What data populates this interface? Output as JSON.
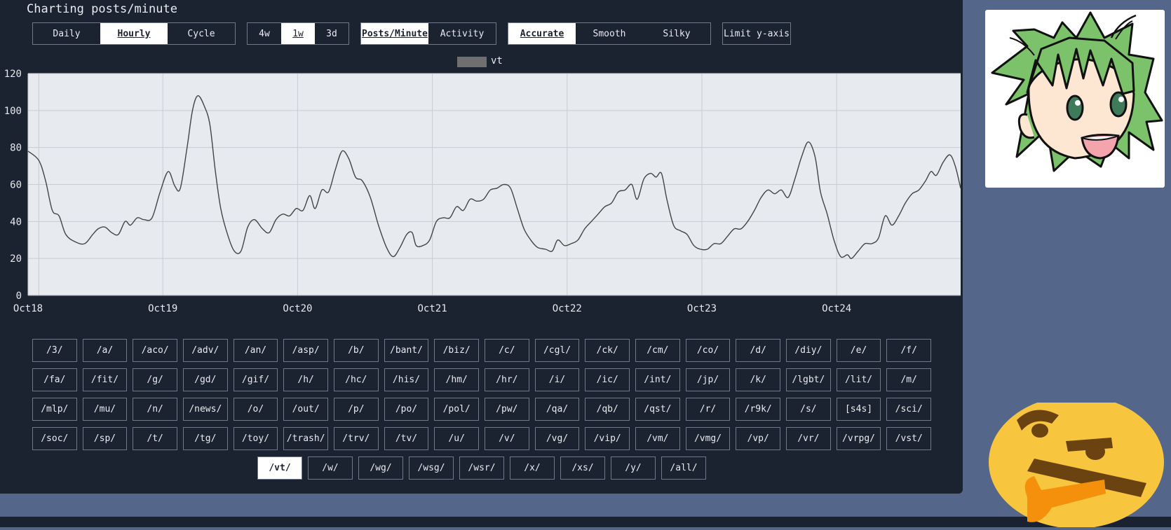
{
  "page": {
    "title": "Charting posts/minute"
  },
  "controls": {
    "range": [
      {
        "label": "Daily",
        "active": false
      },
      {
        "label": "Hourly",
        "active": true
      },
      {
        "label": "Cycle",
        "active": false
      }
    ],
    "span": [
      {
        "label": "4w",
        "active": false
      },
      {
        "label": "1w",
        "active": true
      },
      {
        "label": "3d",
        "active": false
      }
    ],
    "metric": [
      {
        "label": "Posts/Minute",
        "active": true
      },
      {
        "label": "Activity",
        "active": false
      }
    ],
    "smoothing": [
      {
        "label": "Accurate",
        "active": true
      },
      {
        "label": "Smooth",
        "active": false
      },
      {
        "label": "Silky",
        "active": false
      }
    ],
    "limit_y": {
      "label": "Limit y-axis"
    }
  },
  "legend": {
    "label": "vt",
    "color": "#6f6f6f"
  },
  "chart_data": {
    "type": "line",
    "title": "",
    "xlabel": "",
    "ylabel": "",
    "ylim": [
      0,
      120
    ],
    "yticks": [
      "0",
      "20",
      "40",
      "60",
      "80",
      "100",
      "120"
    ],
    "xticks": [
      {
        "label": "Oct18",
        "x": 0
      },
      {
        "label": "Oct19",
        "x": 1
      },
      {
        "label": "Oct20",
        "x": 2
      },
      {
        "label": "Oct21",
        "x": 3
      },
      {
        "label": "Oct22",
        "x": 4
      },
      {
        "label": "Oct23",
        "x": 5
      },
      {
        "label": "Oct24",
        "x": 6
      }
    ],
    "xlim": [
      0,
      6.92
    ],
    "grid": true,
    "legend_position": "top-center",
    "series": [
      {
        "name": "vt",
        "color": "#444444",
        "points": [
          [
            0.0,
            78
          ],
          [
            0.08,
            73
          ],
          [
            0.13,
            62
          ],
          [
            0.18,
            46
          ],
          [
            0.23,
            43
          ],
          [
            0.28,
            33
          ],
          [
            0.35,
            29
          ],
          [
            0.42,
            28
          ],
          [
            0.48,
            33
          ],
          [
            0.52,
            36
          ],
          [
            0.57,
            37
          ],
          [
            0.62,
            34
          ],
          [
            0.67,
            33
          ],
          [
            0.72,
            40
          ],
          [
            0.76,
            38
          ],
          [
            0.81,
            42
          ],
          [
            0.86,
            41
          ],
          [
            0.92,
            42
          ],
          [
            0.98,
            56
          ],
          [
            1.04,
            67
          ],
          [
            1.09,
            59
          ],
          [
            1.13,
            58
          ],
          [
            1.18,
            80
          ],
          [
            1.22,
            100
          ],
          [
            1.26,
            108
          ],
          [
            1.31,
            102
          ],
          [
            1.35,
            92
          ],
          [
            1.39,
            67
          ],
          [
            1.43,
            47
          ],
          [
            1.48,
            33
          ],
          [
            1.53,
            24
          ],
          [
            1.58,
            24
          ],
          [
            1.63,
            37
          ],
          [
            1.68,
            41
          ],
          [
            1.74,
            36
          ],
          [
            1.79,
            34
          ],
          [
            1.84,
            41
          ],
          [
            1.89,
            44
          ],
          [
            1.94,
            43
          ],
          [
            1.99,
            47
          ],
          [
            2.04,
            46
          ],
          [
            2.09,
            54
          ],
          [
            2.13,
            47
          ],
          [
            2.18,
            57
          ],
          [
            2.23,
            56
          ],
          [
            2.28,
            68
          ],
          [
            2.33,
            78
          ],
          [
            2.38,
            74
          ],
          [
            2.43,
            64
          ],
          [
            2.48,
            62
          ],
          [
            2.54,
            53
          ],
          [
            2.6,
            38
          ],
          [
            2.66,
            26
          ],
          [
            2.71,
            21
          ],
          [
            2.76,
            26
          ],
          [
            2.81,
            33
          ],
          [
            2.85,
            34
          ],
          [
            2.88,
            27
          ],
          [
            2.93,
            27
          ],
          [
            2.98,
            30
          ],
          [
            3.03,
            40
          ],
          [
            3.08,
            42
          ],
          [
            3.13,
            42
          ],
          [
            3.18,
            48
          ],
          [
            3.23,
            46
          ],
          [
            3.28,
            52
          ],
          [
            3.33,
            51
          ],
          [
            3.38,
            52
          ],
          [
            3.43,
            57
          ],
          [
            3.48,
            58
          ],
          [
            3.53,
            60
          ],
          [
            3.58,
            58
          ],
          [
            3.63,
            47
          ],
          [
            3.68,
            36
          ],
          [
            3.73,
            30
          ],
          [
            3.78,
            26
          ],
          [
            3.84,
            25
          ],
          [
            3.89,
            24
          ],
          [
            3.93,
            30
          ],
          [
            3.98,
            27
          ],
          [
            4.03,
            28
          ],
          [
            4.08,
            30
          ],
          [
            4.13,
            36
          ],
          [
            4.18,
            40
          ],
          [
            4.23,
            44
          ],
          [
            4.28,
            48
          ],
          [
            4.33,
            50
          ],
          [
            4.38,
            56
          ],
          [
            4.43,
            57
          ],
          [
            4.48,
            60
          ],
          [
            4.52,
            52
          ],
          [
            4.57,
            63
          ],
          [
            4.62,
            66
          ],
          [
            4.66,
            64
          ],
          [
            4.7,
            66
          ],
          [
            4.74,
            52
          ],
          [
            4.79,
            38
          ],
          [
            4.84,
            35
          ],
          [
            4.89,
            33
          ],
          [
            4.94,
            27
          ],
          [
            4.99,
            25
          ],
          [
            5.04,
            25
          ],
          [
            5.09,
            28
          ],
          [
            5.14,
            28
          ],
          [
            5.19,
            32
          ],
          [
            5.24,
            36
          ],
          [
            5.29,
            36
          ],
          [
            5.34,
            40
          ],
          [
            5.39,
            46
          ],
          [
            5.44,
            53
          ],
          [
            5.49,
            57
          ],
          [
            5.54,
            55
          ],
          [
            5.59,
            57
          ],
          [
            5.64,
            53
          ],
          [
            5.69,
            63
          ],
          [
            5.74,
            75
          ],
          [
            5.79,
            83
          ],
          [
            5.84,
            75
          ],
          [
            5.88,
            56
          ],
          [
            5.93,
            44
          ],
          [
            5.98,
            30
          ],
          [
            6.03,
            21
          ],
          [
            6.08,
            22
          ],
          [
            6.11,
            20
          ],
          [
            6.16,
            24
          ],
          [
            6.21,
            28
          ],
          [
            6.26,
            28
          ],
          [
            6.31,
            31
          ],
          [
            6.36,
            43
          ],
          [
            6.41,
            38
          ],
          [
            6.46,
            43
          ],
          [
            6.51,
            50
          ],
          [
            6.56,
            55
          ],
          [
            6.61,
            57
          ],
          [
            6.66,
            62
          ],
          [
            6.7,
            67
          ],
          [
            6.74,
            65
          ],
          [
            6.79,
            72
          ],
          [
            6.84,
            76
          ],
          [
            6.88,
            70
          ],
          [
            6.92,
            58
          ]
        ]
      }
    ]
  },
  "boards": {
    "rows": [
      [
        "/3/",
        "/a/",
        "/aco/",
        "/adv/",
        "/an/",
        "/asp/",
        "/b/",
        "/bant/",
        "/biz/",
        "/c/",
        "/cgl/",
        "/ck/",
        "/cm/",
        "/co/",
        "/d/",
        "/diy/",
        "/e/",
        "/f/"
      ],
      [
        "/fa/",
        "/fit/",
        "/g/",
        "/gd/",
        "/gif/",
        "/h/",
        "/hc/",
        "/his/",
        "/hm/",
        "/hr/",
        "/i/",
        "/ic/",
        "/int/",
        "/jp/",
        "/k/",
        "/lgbt/",
        "/lit/",
        "/m/"
      ],
      [
        "/mlp/",
        "/mu/",
        "/n/",
        "/news/",
        "/o/",
        "/out/",
        "/p/",
        "/po/",
        "/pol/",
        "/pw/",
        "/qa/",
        "/qb/",
        "/qst/",
        "/r/",
        "/r9k/",
        "/s/",
        "[s4s]",
        "/sci/"
      ],
      [
        "/soc/",
        "/sp/",
        "/t/",
        "/tg/",
        "/toy/",
        "/trash/",
        "/trv/",
        "/tv/",
        "/u/",
        "/v/",
        "/vg/",
        "/vip/",
        "/vm/",
        "/vmg/",
        "/vp/",
        "/vr/",
        "/vrpg/",
        "/vst/"
      ],
      [
        "/vt/",
        "/w/",
        "/wg/",
        "/wsg/",
        "/wsr/",
        "/x/",
        "/xs/",
        "/y/",
        "/all/"
      ]
    ],
    "active": "/vt/"
  },
  "decor": {
    "mascot_icon": "anime-girl-mascot-icon",
    "thinking_icon": "thinking-face-icon"
  }
}
